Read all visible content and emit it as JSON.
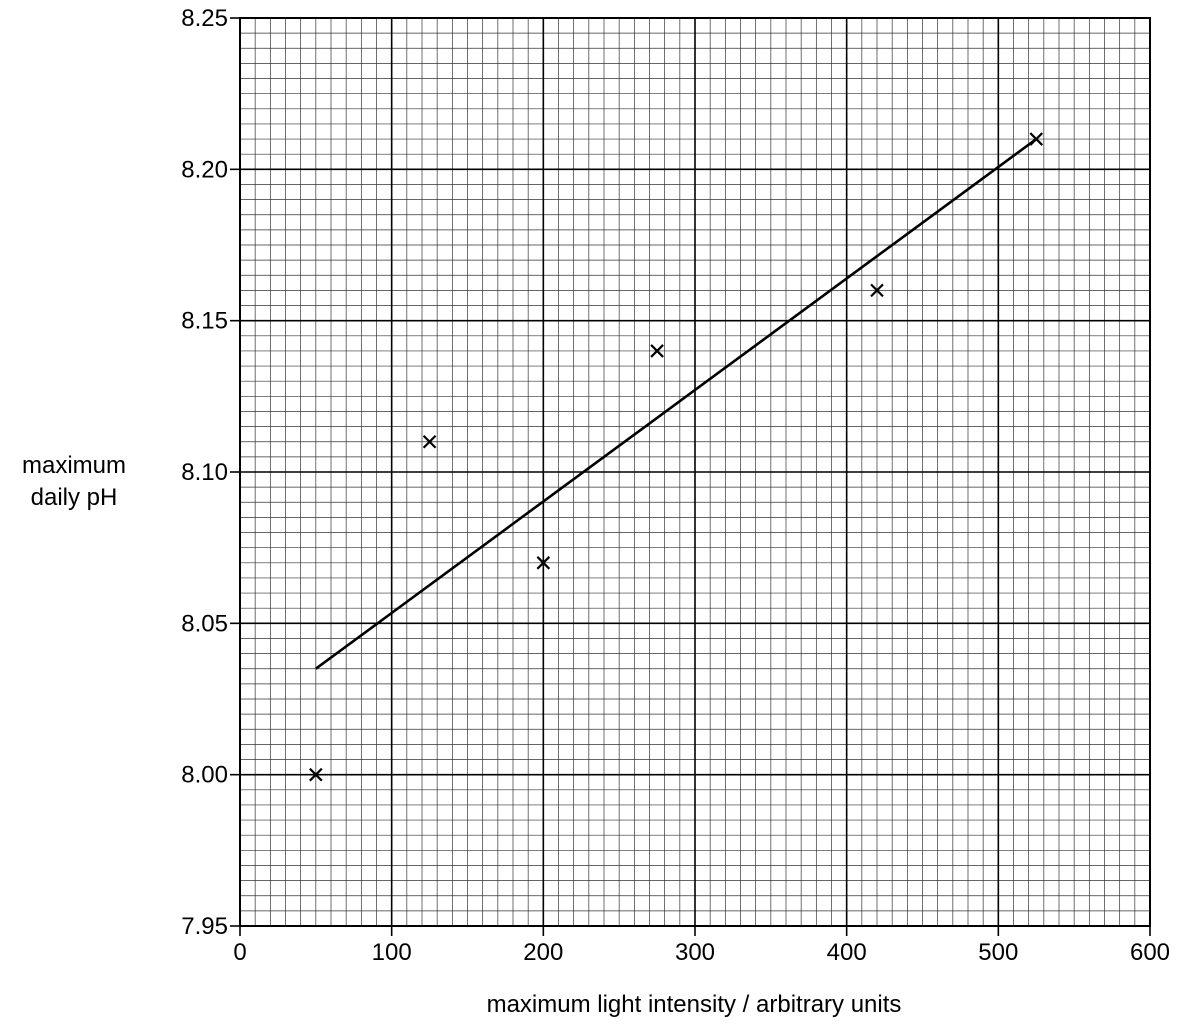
{
  "chart_data": {
    "type": "scatter",
    "title": "",
    "xlabel": "maximum light intensity / arbitrary units",
    "ylabel_lines": [
      "maximum",
      "daily pH"
    ],
    "xlim": [
      0,
      600
    ],
    "ylim": [
      7.95,
      8.25
    ],
    "x_ticks": [
      0,
      100,
      200,
      300,
      400,
      500,
      600
    ],
    "y_ticks": [
      7.95,
      8.0,
      8.05,
      8.1,
      8.15,
      8.2,
      8.25
    ],
    "x_tick_labels": [
      "0",
      "100",
      "200",
      "300",
      "400",
      "500",
      "600"
    ],
    "y_tick_labels": [
      "7.95",
      "8.00",
      "8.05",
      "8.10",
      "8.15",
      "8.20",
      "8.25"
    ],
    "grid": true,
    "grid_minor_x_step": 10,
    "grid_minor_y_step": 0.005,
    "marker": "x",
    "points": [
      {
        "x": 50,
        "y": 8.0
      },
      {
        "x": 125,
        "y": 8.11
      },
      {
        "x": 200,
        "y": 8.07
      },
      {
        "x": 275,
        "y": 8.14
      },
      {
        "x": 420,
        "y": 8.16
      },
      {
        "x": 525,
        "y": 8.21
      }
    ],
    "best_fit_line": {
      "x1": 50,
      "y1": 8.035,
      "x2": 525,
      "y2": 8.21
    },
    "colors": {
      "ink": "#000000",
      "minor_grid": "#333333",
      "background": "#ffffff"
    }
  }
}
